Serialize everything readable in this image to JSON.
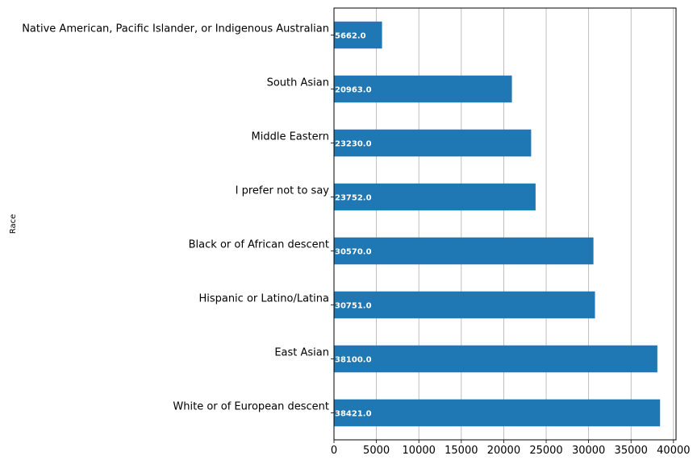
{
  "chart_data": {
    "type": "bar",
    "orientation": "horizontal",
    "title": "",
    "xlabel": "",
    "ylabel": "Race",
    "categories": [
      "Native American, Pacific Islander, or Indigenous Australian",
      "South Asian",
      "Middle Eastern",
      "I prefer not to say",
      "Black or of African descent",
      "Hispanic or Latino/Latina",
      "East Asian",
      "White or of European descent"
    ],
    "values": [
      5662.0,
      20963.0,
      23230.0,
      23752.0,
      30570.0,
      30751.0,
      38100.0,
      38421.0
    ],
    "value_labels": [
      "5662.0",
      "20963.0",
      "23230.0",
      "23752.0",
      "30570.0",
      "30751.0",
      "38100.0",
      "38421.0"
    ],
    "xlim": [
      0,
      40300
    ],
    "xticks": [
      0,
      5000,
      10000,
      15000,
      20000,
      25000,
      30000,
      35000,
      40000
    ],
    "xtick_labels": [
      "0",
      "5000",
      "10000",
      "15000",
      "20000",
      "25000",
      "30000",
      "35000",
      "40000"
    ],
    "grid": "x",
    "bar_color": "#1f77b4",
    "grid_color": "#b0b0b0"
  }
}
